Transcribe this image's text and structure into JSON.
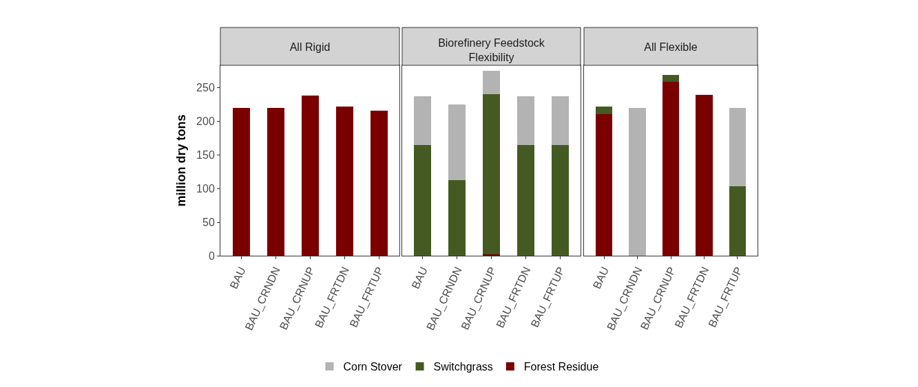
{
  "chart_data": [
    {
      "type": "bar",
      "title": "All Rigid",
      "ylabel": "million dry tons",
      "categories": [
        "BAU",
        "BAU_CRNDN",
        "BAU_CRNUP",
        "BAU_FRTDN",
        "BAU_FRTUP"
      ],
      "stacked": true,
      "ylim": [
        0,
        283
      ],
      "yticks": [
        0,
        50,
        100,
        150,
        200,
        250
      ],
      "grid": false,
      "legend": false,
      "series": [
        {
          "color": "#7a0000",
          "values": [
            220,
            220,
            238,
            222,
            216
          ]
        },
        {
          "color": "#445a22",
          "values": [
            0,
            0,
            0,
            0,
            0
          ]
        },
        {
          "color": "#b3b3b3",
          "values": [
            0,
            0,
            0,
            0,
            0
          ]
        }
      ]
    },
    {
      "type": "bar",
      "title": "Biorefinery Feedstock Flexibility",
      "categories": [
        "BAU",
        "BAU_CRNDN",
        "BAU_CRNUP",
        "BAU_FRTDN",
        "BAU_FRTUP"
      ],
      "stacked": true,
      "ylim": [
        0,
        283
      ],
      "yticks": [
        0,
        50,
        100,
        150,
        200,
        250
      ],
      "grid": false,
      "legend": "bottom",
      "tick_labels": "x",
      "series": [
        {
          "name": "Forest Residue",
          "color": "#7a0000",
          "values": [
            0,
            0,
            2,
            0,
            0
          ]
        },
        {
          "name": "Switchgrass",
          "color": "#445a22",
          "values": [
            164,
            112,
            238,
            165,
            164
          ]
        },
        {
          "name": "Corn Stover",
          "color": "#b3b3b3",
          "values": [
            73,
            113,
            35,
            72,
            73
          ]
        }
      ]
    },
    {
      "type": "bar",
      "title": "All Flexible",
      "categories": [
        "BAU",
        "BAU_CRNDN",
        "BAU_CRNUP",
        "BAU_FRTDN",
        "BAU_FRTUP"
      ],
      "stacked": true,
      "ylim": [
        0,
        283
      ],
      "yticks": [
        0,
        50,
        100,
        150,
        200,
        250
      ],
      "grid": false,
      "legend": false,
      "tick_labels": "x",
      "series": [
        {
          "color": "#7a0000",
          "values": [
            210,
            0,
            258,
            239,
            0
          ]
        },
        {
          "color": "#445a22",
          "values": [
            12,
            0,
            11,
            0,
            103
          ]
        },
        {
          "color": "#b3b3b3",
          "values": [
            0,
            220,
            0,
            0,
            117
          ]
        }
      ]
    }
  ]
}
